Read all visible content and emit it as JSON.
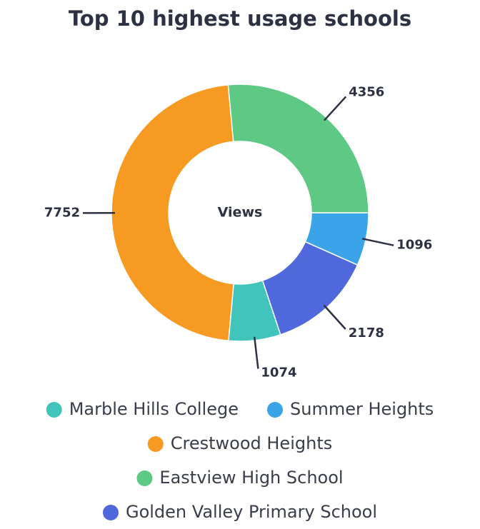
{
  "chart_data": {
    "type": "donut",
    "title": "Top 10 highest usage schools",
    "center_label": "Views",
    "categories": [
      "Summer Heights",
      "Golden Valley Primary School",
      "Marble Hills College",
      "Crestwood Heights",
      "Eastview High School"
    ],
    "values": [
      1096,
      2178,
      1074,
      7752,
      4356
    ],
    "colors": [
      "#3ba3e8",
      "#4f68dc",
      "#41c4bc",
      "#f79a21",
      "#5dc985"
    ]
  }
}
